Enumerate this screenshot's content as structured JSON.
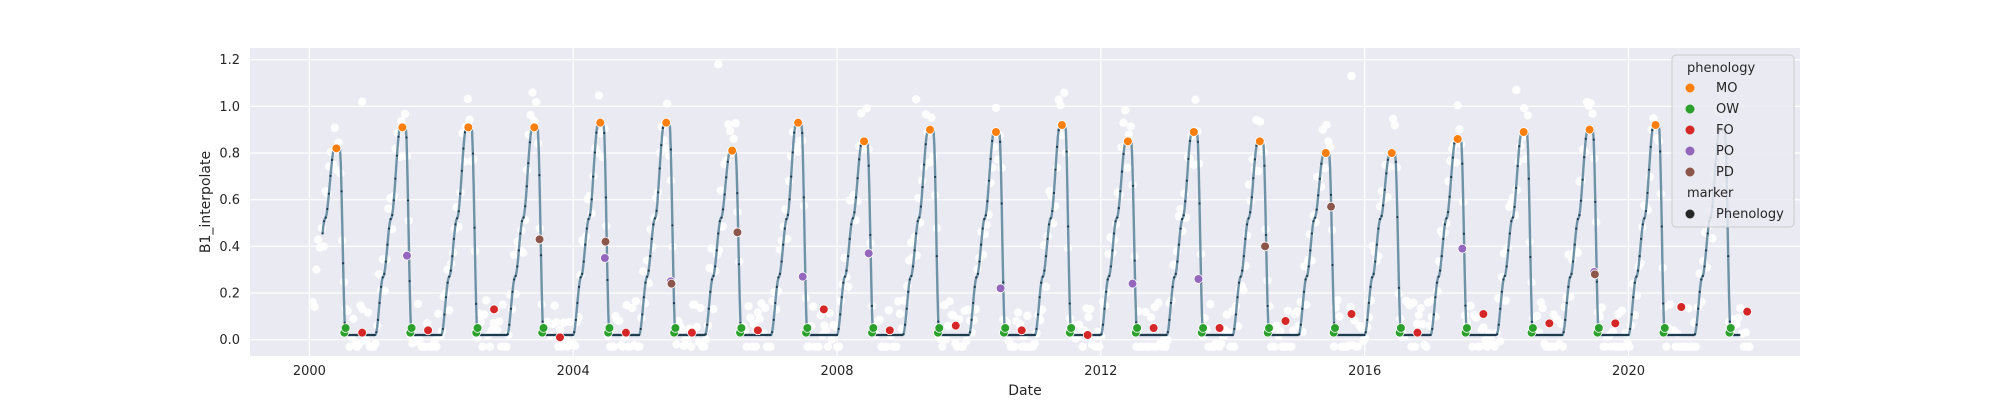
{
  "chart_data": {
    "type": "scatter",
    "xlabel": "Date",
    "ylabel": "B1_interpolate",
    "xlim": [
      1999.1,
      2022.6
    ],
    "ylim": [
      -0.07,
      1.25
    ],
    "x_ticks": [
      2000,
      2004,
      2008,
      2012,
      2016,
      2020
    ],
    "x_tick_labels": [
      "2000",
      "2004",
      "2008",
      "2012",
      "2016",
      "2020"
    ],
    "y_ticks": [
      0.0,
      0.2,
      0.4,
      0.6,
      0.8,
      1.0,
      1.2
    ],
    "y_tick_labels": [
      "0.0",
      "0.2",
      "0.4",
      "0.6",
      "0.8",
      "1.0",
      "1.2"
    ],
    "grid": true,
    "legend_position": "top-right",
    "legend": {
      "phenology_title": "phenology",
      "entries": [
        {
          "label": "MO",
          "color": "#ff7f0e"
        },
        {
          "label": "OW",
          "color": "#2ca02c"
        },
        {
          "label": "FO",
          "color": "#d62728"
        },
        {
          "label": "PO",
          "color": "#9467bd"
        },
        {
          "label": "PD",
          "color": "#8c564b"
        }
      ],
      "marker_title": "marker",
      "marker_entries": [
        {
          "label": "Phenology",
          "color": "#262626"
        }
      ]
    },
    "colors": {
      "series_line": "#6e92a6",
      "interp_dots": "#1f3a4d",
      "raw_points": "#ffffff",
      "background": "#eaeaf2",
      "grid": "#ffffff"
    },
    "cycles": [
      {
        "year": 2000,
        "mo": 0.82,
        "fo": 0.03
      },
      {
        "year": 2001,
        "mo": 0.91,
        "po": 0.36,
        "fo": 0.04
      },
      {
        "year": 2002,
        "mo": 0.91,
        "fo": 0.13
      },
      {
        "year": 2003,
        "mo": 0.91,
        "pd": 0.43,
        "fo": 0.01
      },
      {
        "year": 2004,
        "mo": 0.93,
        "po": 0.35,
        "pd": 0.42,
        "fo": 0.03
      },
      {
        "year": 2005,
        "mo": 0.93,
        "po": 0.25,
        "pd": 0.24,
        "fo": 0.03
      },
      {
        "year": 2006,
        "mo": 0.81,
        "pd": 0.46,
        "fo": 0.04
      },
      {
        "year": 2007,
        "mo": 0.93,
        "po": 0.27,
        "fo": 0.13
      },
      {
        "year": 2008,
        "mo": 0.85,
        "po": 0.37,
        "fo": 0.04
      },
      {
        "year": 2009,
        "mo": 0.9,
        "fo": 0.06
      },
      {
        "year": 2010,
        "mo": 0.89,
        "po": 0.22,
        "fo": 0.04
      },
      {
        "year": 2011,
        "mo": 0.92,
        "fo": 0.02
      },
      {
        "year": 2012,
        "mo": 0.85,
        "po": 0.24,
        "fo": 0.05
      },
      {
        "year": 2013,
        "mo": 0.89,
        "po": 0.26,
        "fo": 0.05
      },
      {
        "year": 2014,
        "mo": 0.85,
        "pd": 0.4,
        "fo": 0.08
      },
      {
        "year": 2015,
        "mo": 0.8,
        "pd": 0.57,
        "fo": 0.11
      },
      {
        "year": 2016,
        "mo": 0.8,
        "fo": 0.03
      },
      {
        "year": 2017,
        "mo": 0.86,
        "po": 0.39,
        "fo": 0.11
      },
      {
        "year": 2018,
        "mo": 0.89,
        "fo": 0.07
      },
      {
        "year": 2019,
        "mo": 0.9,
        "po": 0.29,
        "pd": 0.28,
        "fo": 0.07
      },
      {
        "year": 2020,
        "mo": 0.92,
        "fo": 0.14
      },
      {
        "year": 2021,
        "fo": 0.12
      }
    ],
    "outliers": [
      {
        "x": 2000.8,
        "y": 1.02
      },
      {
        "x": 2006.2,
        "y": 1.18
      },
      {
        "x": 2009.2,
        "y": 1.03
      },
      {
        "x": 2015.8,
        "y": 1.13
      },
      {
        "x": 2018.3,
        "y": 1.07
      }
    ]
  }
}
